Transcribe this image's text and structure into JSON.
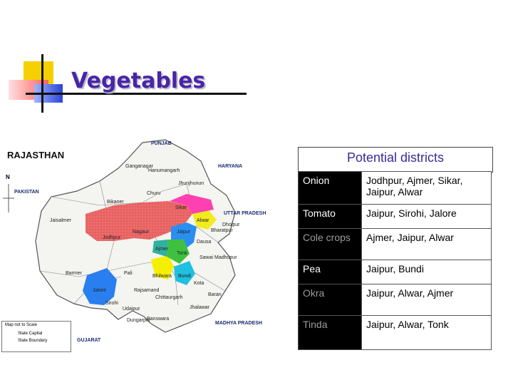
{
  "slide": {
    "title": "Vegetables"
  },
  "map": {
    "heading": "RAJASTHAN",
    "north": "N",
    "neighbors": {
      "punjab": "PUNJAB",
      "haryana": "HARYANA",
      "pakistan": "PAKISTAN",
      "uttar_pradesh": "UTTAR PRADESH",
      "madhya_pradesh": "MADHYA PRADESH",
      "gujarat": "GUJARAT"
    },
    "districts": {
      "ganganagar": "Ganganagar",
      "hanumangarh": "Hanumangarh",
      "jhunjhunun": "Jhunjhunun",
      "bikaner": "Bikaner",
      "churu": "Churu",
      "sikar": "Sikar",
      "alwar": "Alwar",
      "bharatpur": "Bharatpur",
      "dholpur": "Dholpur",
      "jaisalmer": "Jaisalmer",
      "jodhpur": "Jodhpur",
      "nagaur": "Nagaur",
      "jaipur": "Jaipur",
      "dausa": "Dausa",
      "ajmer": "Ajmer",
      "tonk": "Tonk",
      "sawai_madhopur": "Sawai Madhopur",
      "barmer": "Barmer",
      "pali": "Pali",
      "bhilwara": "Bhilwara",
      "bundi": "Bundi",
      "kota": "Kota",
      "jalore": "Jalore",
      "sirohi": "Sirohi",
      "rajsamand": "Rajsamand",
      "chittaurgarh": "Chittaurgarh",
      "udaipur": "Udaipur",
      "baran": "Baran",
      "jhalawar": "Jhalawar",
      "dungarpur": "Dungarpur",
      "banswara": "Banswara"
    },
    "legend": {
      "title": "Map not to Scale",
      "capital": "State Capital",
      "boundary": "State Boundary"
    }
  },
  "table": {
    "title": "Potential districts",
    "rows": [
      {
        "crop": "Onion",
        "districts": "Jodhpur, Ajmer, Sikar, Jaipur, Alwar"
      },
      {
        "crop": "Tomato",
        "districts": "Jaipur, Sirohi, Jalore"
      },
      {
        "crop": "Cole crops",
        "districts": "Ajmer, Jaipur, Alwar"
      },
      {
        "crop": "Pea",
        "districts": "Jaipur, Bundi"
      },
      {
        "crop": "Okra",
        "districts": "Jaipur, Alwar, Ajmer"
      },
      {
        "crop": "Tinda",
        "districts": "Jaipur, Alwar, Tonk"
      }
    ]
  }
}
